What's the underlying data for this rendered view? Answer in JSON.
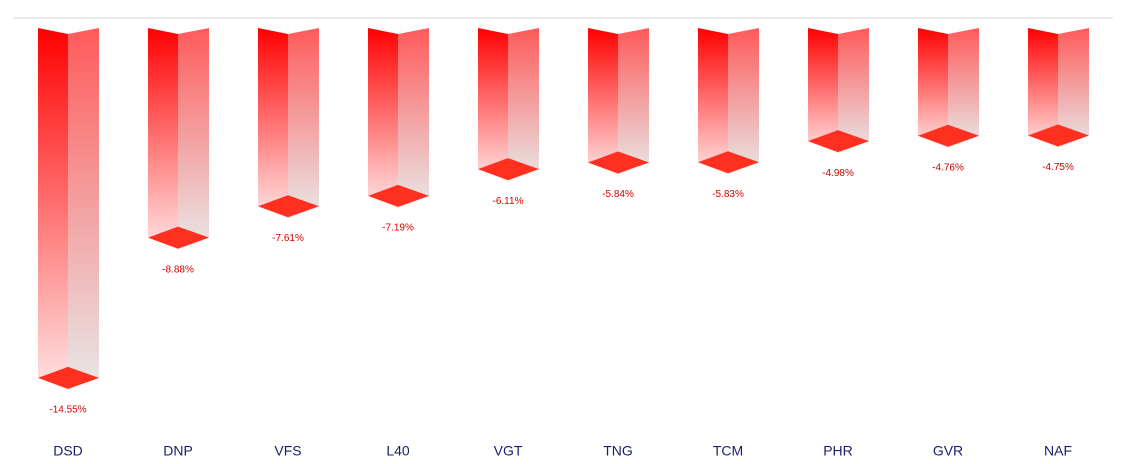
{
  "chart_data": {
    "type": "bar3d",
    "categories": [
      "DSD",
      "DNP",
      "VFS",
      "L40",
      "VGT",
      "TNG",
      "TCM",
      "PHR",
      "GVR",
      "NAF"
    ],
    "values": [
      -14.55,
      -8.88,
      -7.61,
      -7.19,
      -6.11,
      -5.84,
      -5.83,
      -4.98,
      -4.76,
      -4.75
    ],
    "value_labels": [
      "-14.55%",
      "-8.88%",
      "-7.61%",
      "-7.19%",
      "-6.11%",
      "-5.84%",
      "-5.83%",
      "-4.98%",
      "-4.76%",
      "-4.75%"
    ],
    "color": "#ff0000",
    "ylim": [
      -15,
      0
    ]
  }
}
